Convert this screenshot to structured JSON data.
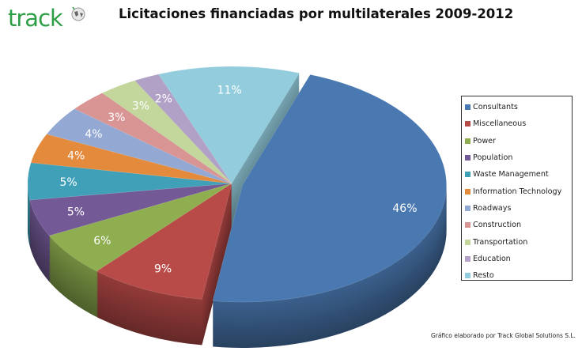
{
  "logo": "track",
  "chart_data": {
    "type": "pie",
    "title": "Licitaciones financiadas por multilaterales 2009-2012",
    "categories": [
      "Consultants",
      "Miscellaneous",
      "Power",
      "Population",
      "Waste Management",
      "Information Technology",
      "Roadways",
      "Construction",
      "Transportation",
      "Education",
      "Resto"
    ],
    "values": [
      46,
      9,
      6,
      5,
      5,
      4,
      4,
      3,
      3,
      2,
      11
    ],
    "labels": [
      "46%",
      "9%",
      "6%",
      "5%",
      "5%",
      "4%",
      "4%",
      "3%",
      "3%",
      "2%",
      "11%"
    ],
    "colors": [
      "#4a78b0",
      "#b84a48",
      "#8eae4f",
      "#735a96",
      "#3fa0b8",
      "#e48a3c",
      "#93a9d4",
      "#d99594",
      "#c3d69b",
      "#b2a1c7",
      "#93cddd"
    ],
    "exploded": [
      "Consultants"
    ],
    "legend_position": "right",
    "three_d": true
  },
  "footer": "Gráfico elaborado por Track Global Solutions S.L."
}
